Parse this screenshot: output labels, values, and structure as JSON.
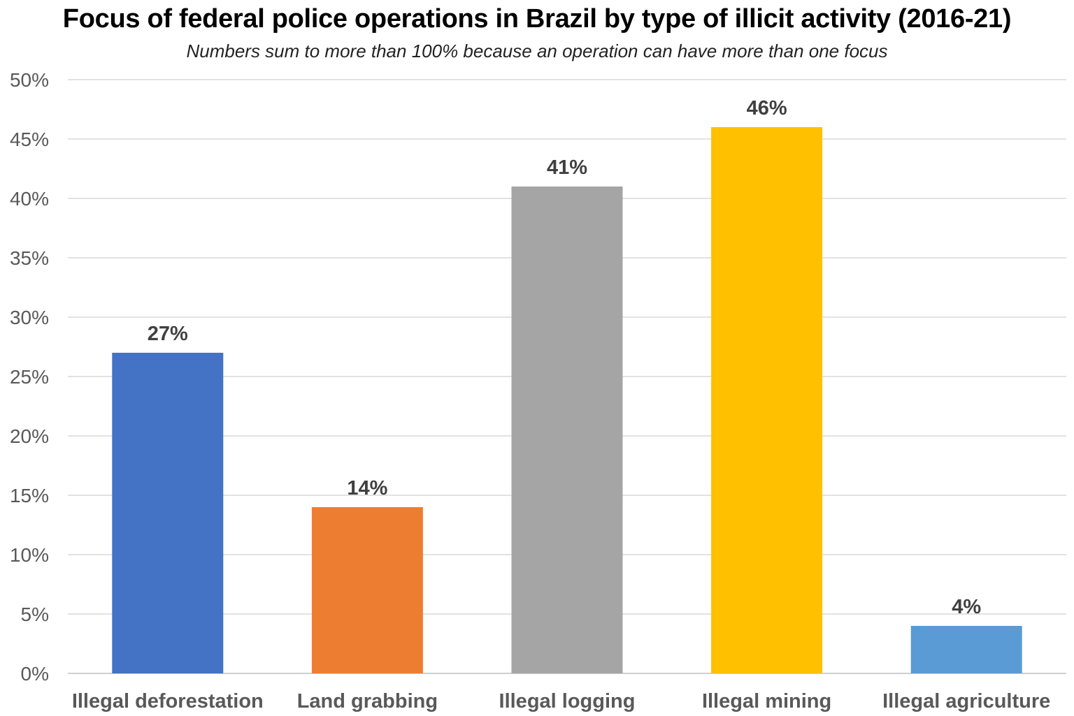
{
  "chart_data": {
    "type": "bar",
    "title": "Focus of federal police operations in Brazil by type of illicit activity (2016-21)",
    "subtitle": "Numbers sum to more than 100% because an operation can have more than one focus",
    "categories": [
      "Illegal deforestation",
      "Land grabbing",
      "Illegal logging",
      "Illegal mining",
      "Illegal agriculture"
    ],
    "values": [
      27,
      14,
      41,
      46,
      4
    ],
    "value_labels": [
      "27%",
      "14%",
      "41%",
      "46%",
      "4%"
    ],
    "colors": [
      "#4472C4",
      "#ED7D31",
      "#A5A5A5",
      "#FFC000",
      "#5B9BD5"
    ],
    "ylim": [
      0,
      50
    ],
    "yticks": [
      0,
      5,
      10,
      15,
      20,
      25,
      30,
      35,
      40,
      45,
      50
    ],
    "ytick_labels": [
      "0%",
      "5%",
      "10%",
      "15%",
      "20%",
      "25%",
      "30%",
      "35%",
      "40%",
      "45%",
      "50%"
    ],
    "xlabel": "",
    "ylabel": "",
    "grid": true,
    "legend": "none"
  }
}
